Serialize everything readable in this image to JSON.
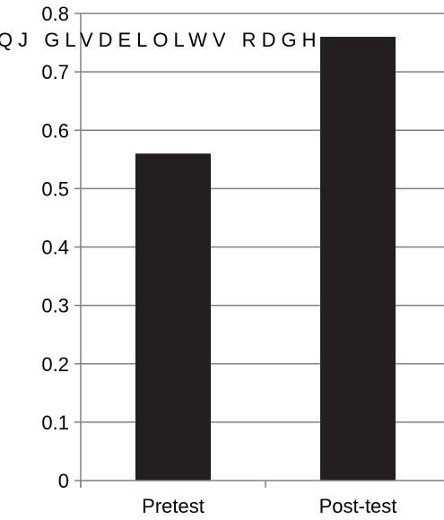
{
  "chart_data": {
    "type": "bar",
    "categories": [
      "Pretest",
      "Post-test"
    ],
    "series": [
      {
        "values": [
          0.56,
          0.76
        ]
      }
    ],
    "ylim": [
      0,
      0.8
    ],
    "yticks": [
      "0",
      "0.1",
      "0.2",
      "0.3",
      "0.4",
      "0.5",
      "0.6",
      "0.7",
      "0.8"
    ],
    "grid": true,
    "bar_color": "#231f20",
    "axis_color": "#808080",
    "garbled_title": "QJ GLVDELOLWV RDGH"
  }
}
